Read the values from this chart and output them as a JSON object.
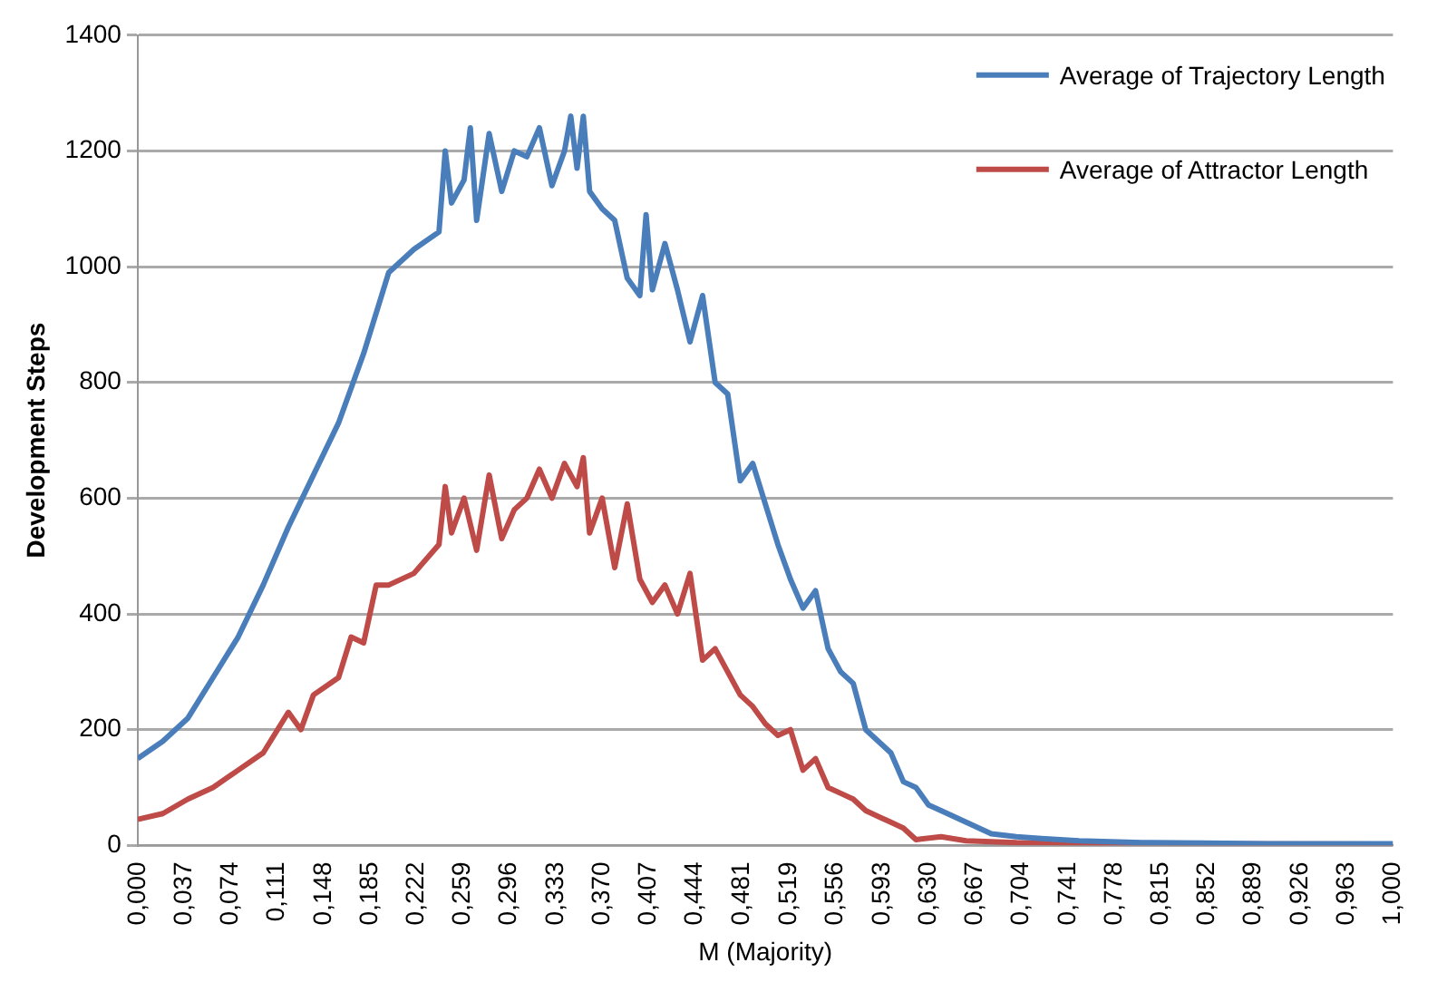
{
  "chart_data": {
    "type": "line",
    "xlabel": "M (Majority)",
    "ylabel": "Development Steps",
    "xlim": [
      0,
      1
    ],
    "xticks": [
      {
        "value": 0,
        "label": "0,000"
      },
      {
        "value": 0.037,
        "label": "0,037"
      },
      {
        "value": 0.074,
        "label": "0,074"
      },
      {
        "value": 0.111,
        "label": "0,111"
      },
      {
        "value": 0.148,
        "label": "0,148"
      },
      {
        "value": 0.185,
        "label": "0,185"
      },
      {
        "value": 0.222,
        "label": "0,222"
      },
      {
        "value": 0.259,
        "label": "0,259"
      },
      {
        "value": 0.296,
        "label": "0,296"
      },
      {
        "value": 0.333,
        "label": "0,333"
      },
      {
        "value": 0.37,
        "label": "0,370"
      },
      {
        "value": 0.407,
        "label": "0,407"
      },
      {
        "value": 0.444,
        "label": "0,444"
      },
      {
        "value": 0.481,
        "label": "0,481"
      },
      {
        "value": 0.519,
        "label": "0,519"
      },
      {
        "value": 0.556,
        "label": "0,556"
      },
      {
        "value": 0.593,
        "label": "0,593"
      },
      {
        "value": 0.63,
        "label": "0,630"
      },
      {
        "value": 0.667,
        "label": "0,667"
      },
      {
        "value": 0.704,
        "label": "0,704"
      },
      {
        "value": 0.741,
        "label": "0,741"
      },
      {
        "value": 0.778,
        "label": "0,778"
      },
      {
        "value": 0.815,
        "label": "0,815"
      },
      {
        "value": 0.852,
        "label": "0,852"
      },
      {
        "value": 0.889,
        "label": "0,889"
      },
      {
        "value": 0.926,
        "label": "0,926"
      },
      {
        "value": 0.963,
        "label": "0,963"
      },
      {
        "value": 1,
        "label": "1,000"
      }
    ],
    "ylim": [
      0,
      1400
    ],
    "yticks": [
      0,
      200,
      400,
      600,
      800,
      1000,
      1200,
      1400
    ],
    "grid": "y",
    "legend": "top right",
    "marker": "none",
    "line_style": "solid",
    "series": [
      {
        "name": "Average of Trajectory Length",
        "color": "#4a7ebb",
        "x": [
          0,
          0.02,
          0.04,
          0.06,
          0.08,
          0.1,
          0.12,
          0.14,
          0.16,
          0.18,
          0.2,
          0.22,
          0.24,
          0.245,
          0.25,
          0.26,
          0.265,
          0.27,
          0.28,
          0.29,
          0.3,
          0.31,
          0.32,
          0.33,
          0.34,
          0.345,
          0.35,
          0.355,
          0.36,
          0.37,
          0.38,
          0.39,
          0.4,
          0.405,
          0.41,
          0.42,
          0.43,
          0.44,
          0.45,
          0.46,
          0.47,
          0.48,
          0.49,
          0.5,
          0.51,
          0.52,
          0.53,
          0.54,
          0.55,
          0.56,
          0.57,
          0.58,
          0.59,
          0.6,
          0.61,
          0.62,
          0.63,
          0.64,
          0.66,
          0.68,
          0.7,
          0.72,
          0.75,
          0.8,
          0.85,
          0.9,
          1
        ],
        "values": [
          150,
          180,
          220,
          290,
          360,
          450,
          550,
          640,
          730,
          850,
          990,
          1030,
          1060,
          1200,
          1110,
          1150,
          1240,
          1080,
          1230,
          1130,
          1200,
          1190,
          1240,
          1140,
          1200,
          1260,
          1170,
          1260,
          1130,
          1100,
          1080,
          980,
          950,
          1090,
          960,
          1040,
          960,
          870,
          950,
          800,
          780,
          630,
          660,
          590,
          520,
          460,
          410,
          440,
          340,
          300,
          280,
          200,
          180,
          160,
          110,
          100,
          70,
          60,
          40,
          20,
          15,
          12,
          8,
          5,
          4,
          3,
          3
        ]
      },
      {
        "name": "Average of Attractor Length",
        "color": "#be4b48",
        "x": [
          0,
          0.02,
          0.04,
          0.06,
          0.08,
          0.1,
          0.12,
          0.13,
          0.14,
          0.16,
          0.17,
          0.18,
          0.19,
          0.2,
          0.22,
          0.24,
          0.245,
          0.25,
          0.26,
          0.27,
          0.28,
          0.29,
          0.3,
          0.31,
          0.32,
          0.33,
          0.34,
          0.35,
          0.355,
          0.36,
          0.37,
          0.38,
          0.39,
          0.4,
          0.41,
          0.42,
          0.43,
          0.44,
          0.45,
          0.46,
          0.47,
          0.48,
          0.49,
          0.5,
          0.51,
          0.52,
          0.53,
          0.54,
          0.55,
          0.56,
          0.57,
          0.58,
          0.59,
          0.6,
          0.61,
          0.62,
          0.64,
          0.66,
          0.7,
          0.8,
          1
        ],
        "values": [
          45,
          55,
          80,
          100,
          130,
          160,
          230,
          200,
          260,
          290,
          360,
          350,
          450,
          450,
          470,
          520,
          620,
          540,
          600,
          510,
          640,
          530,
          580,
          600,
          650,
          600,
          660,
          620,
          670,
          540,
          600,
          480,
          590,
          460,
          420,
          450,
          400,
          470,
          320,
          340,
          300,
          260,
          240,
          210,
          190,
          200,
          130,
          150,
          100,
          90,
          80,
          60,
          50,
          40,
          30,
          10,
          15,
          8,
          5,
          3,
          2
        ]
      }
    ]
  }
}
